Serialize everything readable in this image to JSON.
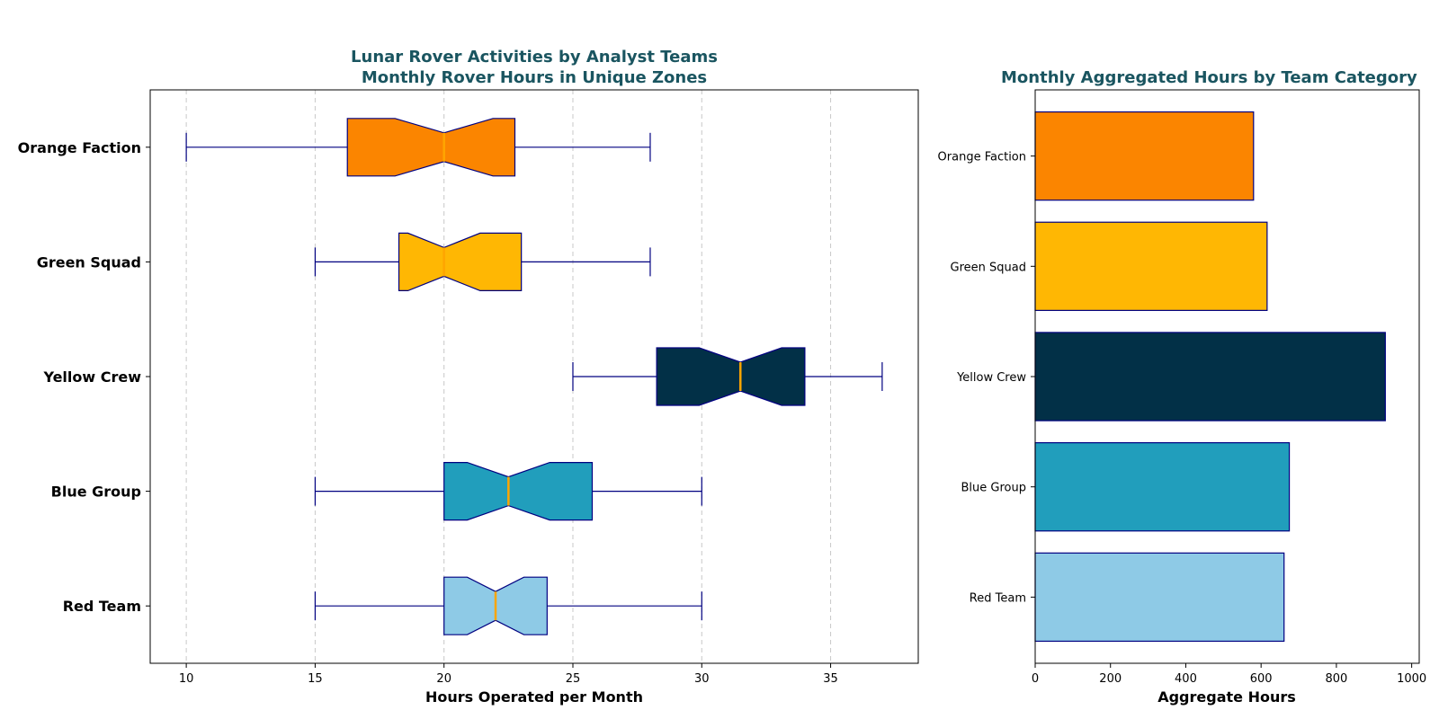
{
  "chart_data": [
    {
      "type": "boxplot",
      "title": "Lunar Rover Activities by Analyst Teams\nMonthly Rover Hours in Unique Zones",
      "xlabel": "Hours Operated per Month",
      "ylabel": "",
      "xlim": [
        8.6,
        38.4
      ],
      "xticks": [
        10,
        15,
        20,
        25,
        30,
        35
      ],
      "grid": "vertical dashed",
      "notched": true,
      "categories": [
        "Red Team",
        "Blue Group",
        "Yellow Crew",
        "Green Squad",
        "Orange Faction"
      ],
      "boxes": [
        {
          "name": "Red Team",
          "whisker_low": 15,
          "q1": 20,
          "median": 22,
          "q3": 24,
          "whisker_high": 30,
          "notch_low": 20.9,
          "notch_high": 23.1
        },
        {
          "name": "Blue Group",
          "whisker_low": 15,
          "q1": 20,
          "median": 22.5,
          "q3": 25.75,
          "whisker_high": 30,
          "notch_low": 20.9,
          "notch_high": 24.1
        },
        {
          "name": "Yellow Crew",
          "whisker_low": 25,
          "q1": 28.25,
          "median": 31.5,
          "q3": 34,
          "whisker_high": 37,
          "notch_low": 29.9,
          "notch_high": 33.1
        },
        {
          "name": "Green Squad",
          "whisker_low": 15,
          "q1": 18.25,
          "median": 20,
          "q3": 23,
          "whisker_high": 28,
          "notch_low": 18.6,
          "notch_high": 21.4
        },
        {
          "name": "Orange Faction",
          "whisker_low": 10,
          "q1": 16.25,
          "median": 20,
          "q3": 22.75,
          "whisker_high": 28,
          "notch_low": 18.1,
          "notch_high": 21.9
        }
      ],
      "colors": [
        "#8ecae6",
        "#219ebc",
        "#023047",
        "#ffb703",
        "#fb8500"
      ],
      "edge_color": "#000080",
      "median_color": "#ffa500"
    },
    {
      "type": "bar",
      "orientation": "horizontal",
      "title": "Monthly Aggregated Hours by Team Category",
      "xlabel": "Aggregate Hours",
      "ylabel": "",
      "xlim": [
        0,
        1020
      ],
      "xticks": [
        0,
        200,
        400,
        600,
        800,
        1000
      ],
      "categories": [
        "Red Team",
        "Blue Group",
        "Yellow Crew",
        "Green Squad",
        "Orange Faction"
      ],
      "values": [
        661,
        675,
        930,
        616,
        580
      ],
      "colors": [
        "#8ecae6",
        "#219ebc",
        "#023047",
        "#ffb703",
        "#fb8500"
      ],
      "edge_color": "#000080"
    }
  ]
}
